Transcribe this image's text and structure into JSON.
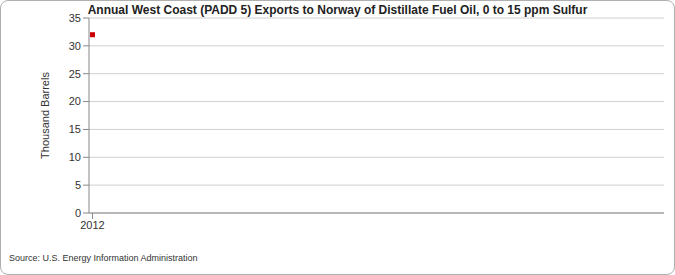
{
  "chart_data": {
    "type": "line",
    "title": "Annual West Coast (PADD 5) Exports to Norway of Distillate Fuel Oil, 0 to 15 ppm Sulfur",
    "y_label": "Thousand Barrels",
    "source": "Source: U.S. Energy Information Administration",
    "categories": [
      "2012"
    ],
    "values": [
      32
    ],
    "color": "#cc0000",
    "marker": "square",
    "ylim": [
      0,
      35
    ],
    "yticks": [
      0,
      5,
      10,
      15,
      20,
      25,
      30,
      35
    ],
    "grid": true
  }
}
